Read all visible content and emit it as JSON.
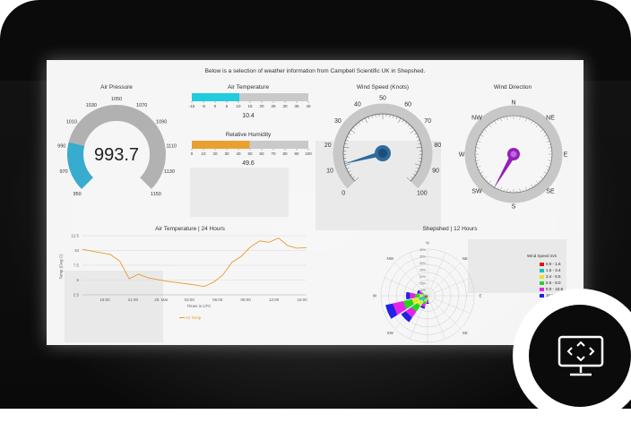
{
  "page": {
    "intro": "Below is a selection of weather information from Campbell Scientific UK in Shepshed."
  },
  "air_pressure": {
    "title": "Air Pressure",
    "value": "993.7",
    "ticks": [
      "950",
      "970",
      "990",
      "1010",
      "1030",
      "1050",
      "1070",
      "1090",
      "1110",
      "1130",
      "1150"
    ],
    "min": 950,
    "max": 1150,
    "reading": 993.7,
    "color_fill": "#3ab3d6",
    "color_track": "#b8b8b8"
  },
  "air_temperature_bar": {
    "title": "Air Temperature",
    "ticks": [
      "-10",
      "-5",
      "0",
      "5",
      "10",
      "15",
      "20",
      "25",
      "30",
      "35",
      "40"
    ],
    "min": -10,
    "max": 40,
    "reading": 10.4,
    "value": "10.4",
    "color_fill": "#22d3e6"
  },
  "humidity_bar": {
    "title": "Relative Humidity",
    "ticks": [
      "0",
      "10",
      "20",
      "30",
      "40",
      "50",
      "60",
      "70",
      "80",
      "90",
      "100"
    ],
    "min": 0,
    "max": 100,
    "reading": 49.6,
    "value": "49.6",
    "color_fill": "#f2a531"
  },
  "wind_speed": {
    "title": "Wind Speed (Knots)",
    "ticks": [
      "0",
      "10",
      "20",
      "30",
      "40",
      "50",
      "60",
      "70",
      "80",
      "90",
      "100"
    ],
    "min": 0,
    "max": 100,
    "reading": 11,
    "color_needle": "#2f6ea3"
  },
  "wind_direction": {
    "title": "Wind Direction",
    "points": [
      "N",
      "NE",
      "E",
      "SE",
      "S",
      "SW",
      "W",
      "NW"
    ],
    "reading_deg": 210,
    "color_needle": "#9b1fc3"
  },
  "temp_chart": {
    "title": "Air Temperature | 24 Hours",
    "ylabel": "Temp (Deg C)",
    "xlabel": "Times is UTC",
    "y_ticks": [
      "2.5",
      "5",
      "7.5",
      "10",
      "12.5"
    ],
    "x_ticks": [
      "18:00",
      "21:00",
      "29. Mar",
      "03:00",
      "06:00",
      "09:00",
      "12:00",
      "15:00"
    ],
    "legend": "Air Temp",
    "color": "#f0a030"
  },
  "chart_data": {
    "type": "line",
    "title": "Air Temperature | 24 Hours",
    "xlabel": "Times is UTC",
    "ylabel": "Temp (Deg C)",
    "x": [
      "16:00",
      "17:00",
      "18:00",
      "19:00",
      "20:00",
      "21:00",
      "22:00",
      "23:00",
      "00:00",
      "01:00",
      "02:00",
      "03:00",
      "04:00",
      "05:00",
      "06:00",
      "07:00",
      "08:00",
      "09:00",
      "10:00",
      "11:00",
      "12:00",
      "13:00",
      "14:00",
      "15:00",
      "16:00"
    ],
    "series": [
      {
        "name": "Air Temp",
        "values": [
          10.2,
          9.9,
          9.6,
          9.3,
          8.2,
          5.2,
          6.0,
          5.4,
          5.1,
          4.8,
          4.6,
          4.4,
          4.2,
          3.9,
          4.6,
          5.8,
          8.0,
          9.0,
          10.6,
          11.6,
          11.4,
          12.1,
          10.8,
          10.4,
          10.5
        ]
      }
    ],
    "ylim": [
      2.5,
      12.5
    ],
    "grid": true,
    "legend": "bottom-center"
  },
  "wind_rose": {
    "title": "Shepshed | 12 Hours",
    "compass": [
      "N",
      "NE",
      "E",
      "SE",
      "S",
      "SW",
      "W",
      "NW"
    ],
    "rings": [
      "10%",
      "15%",
      "20%",
      "25%",
      "30%",
      "35%",
      "40%"
    ],
    "legend_title": "Wind Speed m/s",
    "legend_items": [
      {
        "label": "0.0 - 1.6",
        "color": "#e11"
      },
      {
        "label": "1.6 - 3.4",
        "color": "#1cc"
      },
      {
        "label": "3.4 - 5.5",
        "color": "#ee2"
      },
      {
        "label": "5.5 - 8.0",
        "color": "#2d2"
      },
      {
        "label": "8.0 - 10.8",
        "color": "#e2e"
      },
      {
        "label": "10.8 - 13.9",
        "color": "#22e"
      }
    ]
  },
  "overlay_badge": {
    "icon": "monitor-expand-icon"
  }
}
